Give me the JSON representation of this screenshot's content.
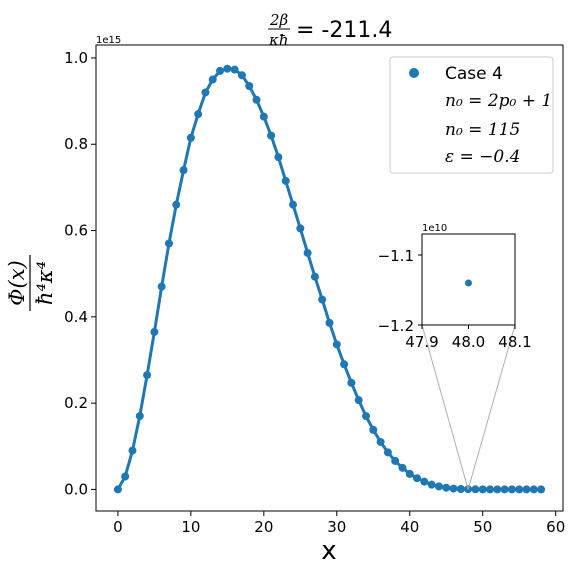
{
  "chart_data": {
    "type": "line",
    "title_prefix": "2β / κħ",
    "title_value": "= -211.4",
    "xlabel": "x",
    "ylabel": "Φ(x) / ħ⁴κ⁴",
    "y_offset_label": "1e15",
    "x_ticks": [
      "0",
      "10",
      "20",
      "30",
      "40",
      "50",
      "60"
    ],
    "y_ticks": [
      "0.0",
      "0.2",
      "0.4",
      "0.6",
      "0.8",
      "1.0"
    ],
    "xlim": [
      -3,
      61
    ],
    "ylim": [
      -0.05,
      1.03
    ],
    "color": "#1f77b4",
    "legend": {
      "location": "top-right",
      "entries": [
        "Case 4",
        "n₀ = 2p₀ + 1",
        "n₀ = 115",
        "ε = −0.4"
      ]
    },
    "series": [
      {
        "name": "Case 4",
        "x": [
          0,
          1,
          2,
          3,
          4,
          5,
          6,
          7,
          8,
          9,
          10,
          11,
          12,
          13,
          14,
          15,
          16,
          17,
          18,
          19,
          20,
          21,
          22,
          23,
          24,
          25,
          26,
          27,
          28,
          29,
          30,
          31,
          32,
          33,
          34,
          35,
          36,
          37,
          38,
          39,
          40,
          41,
          42,
          43,
          44,
          45,
          46,
          47,
          48,
          49,
          50,
          51,
          52,
          53,
          54,
          55,
          56,
          57,
          58
        ],
        "y": [
          0.0,
          0.03,
          0.09,
          0.17,
          0.265,
          0.365,
          0.47,
          0.57,
          0.66,
          0.74,
          0.815,
          0.87,
          0.92,
          0.95,
          0.97,
          0.975,
          0.973,
          0.96,
          0.935,
          0.903,
          0.864,
          0.82,
          0.77,
          0.715,
          0.66,
          0.605,
          0.548,
          0.493,
          0.44,
          0.386,
          0.336,
          0.29,
          0.247,
          0.207,
          0.17,
          0.138,
          0.11,
          0.086,
          0.066,
          0.05,
          0.036,
          0.026,
          0.018,
          0.011,
          0.007,
          0.004,
          0.002,
          0.001,
          0.0006,
          0.0003,
          0.0001,
          0.0,
          0.0,
          0.0,
          0.0,
          0.0,
          0.0,
          0.0,
          0.0
        ]
      }
    ],
    "inset": {
      "xlim": [
        47.9,
        48.1
      ],
      "ylim": [
        -1.2,
        -1.07
      ],
      "x_ticks": [
        "47.9",
        "48.0",
        "48.1"
      ],
      "y_ticks": [
        "−1.1",
        "−1.2"
      ],
      "offset_label": "1e10",
      "point": {
        "x": 48.0,
        "y": -1.14
      },
      "zoom_target_x": 48.0
    }
  }
}
